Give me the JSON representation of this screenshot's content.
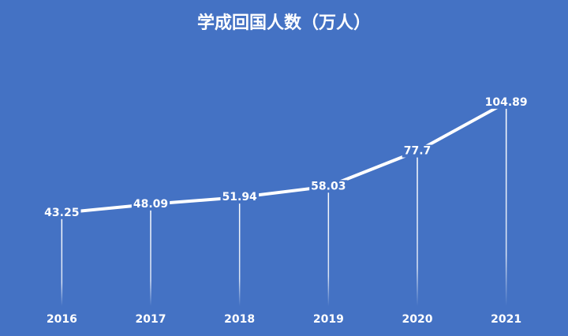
{
  "chart_data": {
    "type": "line",
    "title": "学成回国人数（万人）",
    "categories": [
      "2016",
      "2017",
      "2018",
      "2019",
      "2020",
      "2021"
    ],
    "values": [
      43.25,
      48.09,
      51.94,
      58.03,
      77.7,
      104.89
    ],
    "color": "#ffffff"
  }
}
